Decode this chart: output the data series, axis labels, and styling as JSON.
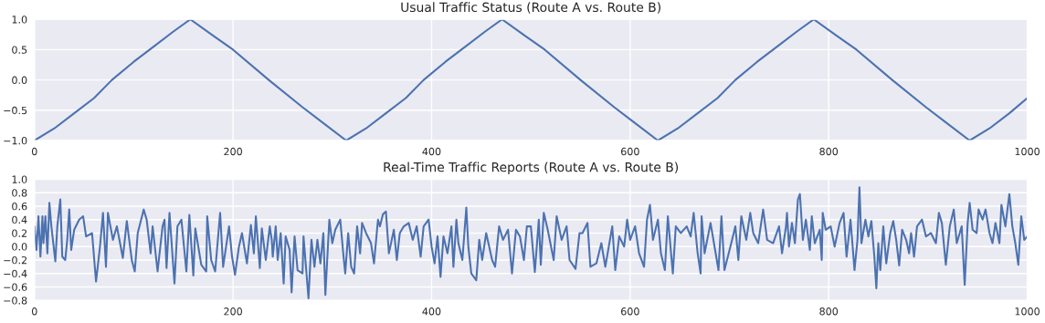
{
  "chart_data": [
    {
      "type": "line",
      "title": "Usual Traffic Status (Route A vs. Route B)",
      "grid": true,
      "xlim": [
        0,
        1000
      ],
      "xticks": [
        0,
        200,
        400,
        600,
        800,
        1000
      ],
      "ylim": [
        -1.0,
        1.0
      ],
      "yticks": [
        {
          "value": -1.0,
          "label": "−1.0"
        },
        {
          "value": -0.5,
          "label": "−0.5"
        },
        {
          "value": 0.0,
          "label": "0.0"
        },
        {
          "value": 0.5,
          "label": "0.5"
        },
        {
          "value": 1.0,
          "label": "1.0"
        }
      ],
      "series": [
        {
          "color": "#4c72b0",
          "x": [
            0,
            20,
            40,
            60,
            78,
            100,
            120,
            140,
            157,
            180,
            200,
            236,
            270,
            290,
            314,
            334,
            354,
            374,
            392,
            414,
            434,
            454,
            471,
            494,
            514,
            550,
            584,
            604,
            628,
            648,
            668,
            688,
            706,
            728,
            748,
            768,
            785,
            808,
            828,
            864,
            898,
            918,
            942,
            962,
            982,
            1000
          ],
          "values": [
            -1.0,
            -0.8,
            -0.55,
            -0.3,
            0.0,
            0.3,
            0.55,
            0.8,
            1.0,
            0.73,
            0.5,
            0.0,
            -0.45,
            -0.7,
            -1.0,
            -0.8,
            -0.55,
            -0.3,
            0.0,
            0.3,
            0.55,
            0.8,
            1.0,
            0.73,
            0.5,
            0.0,
            -0.45,
            -0.7,
            -1.0,
            -0.8,
            -0.55,
            -0.3,
            0.0,
            0.3,
            0.55,
            0.8,
            1.0,
            0.73,
            0.5,
            0.0,
            -0.45,
            -0.7,
            -1.0,
            -0.8,
            -0.55,
            -0.3
          ]
        }
      ]
    },
    {
      "type": "line",
      "title": "Real-Time Traffic Reports (Route A vs. Route B)",
      "grid": true,
      "xlim": [
        0,
        1000
      ],
      "xticks": [
        0,
        200,
        400,
        600,
        800,
        1000
      ],
      "ylim": [
        -0.8,
        1.0
      ],
      "yticks": [
        {
          "value": -0.8,
          "label": "−0.8"
        },
        {
          "value": -0.6,
          "label": "−0.6"
        },
        {
          "value": -0.4,
          "label": "−0.4"
        },
        {
          "value": -0.2,
          "label": "−0.2"
        },
        {
          "value": 0.0,
          "label": "0.0"
        },
        {
          "value": 0.2,
          "label": "0.2"
        },
        {
          "value": 0.4,
          "label": "0.4"
        },
        {
          "value": 0.6,
          "label": "0.6"
        },
        {
          "value": 0.8,
          "label": "0.8"
        },
        {
          "value": 1.0,
          "label": "1.0"
        }
      ],
      "series": [
        {
          "color": "#4c72b0",
          "x": [
            0,
            2,
            4,
            6,
            8,
            9,
            11,
            13,
            15,
            17,
            21,
            23,
            26,
            28,
            31,
            33,
            35,
            37,
            40,
            45,
            49,
            52,
            58,
            62,
            66,
            69,
            72,
            74,
            79,
            83,
            89,
            93,
            98,
            101,
            104,
            110,
            113,
            117,
            119,
            124,
            129,
            131,
            133,
            136,
            141,
            144,
            148,
            153,
            156,
            160,
            162,
            168,
            173,
            174,
            178,
            182,
            187,
            190,
            196,
            199,
            202,
            206,
            209,
            214,
            218,
            221,
            223,
            227,
            229,
            233,
            237,
            239,
            240,
            243,
            245,
            248,
            251,
            253,
            257,
            259,
            262,
            265,
            270,
            271,
            274,
            276,
            279,
            282,
            285,
            288,
            291,
            293,
            297,
            300,
            303,
            308,
            311,
            313,
            316,
            319,
            322,
            325,
            328,
            330,
            334,
            339,
            342,
            346,
            348,
            351,
            354,
            357,
            362,
            365,
            368,
            372,
            377,
            381,
            385,
            389,
            392,
            397,
            400,
            403,
            406,
            409,
            412,
            416,
            420,
            422,
            425,
            427,
            431,
            435,
            437,
            440,
            445,
            448,
            451,
            455,
            461,
            464,
            468,
            472,
            477,
            481,
            485,
            489,
            493,
            496,
            500,
            504,
            508,
            510,
            513,
            517,
            523,
            526,
            531,
            536,
            539,
            545,
            549,
            552,
            557,
            560,
            566,
            571,
            575,
            582,
            585,
            589,
            594,
            597,
            600,
            605,
            609,
            614,
            617,
            620,
            623,
            628,
            631,
            635,
            638,
            643,
            646,
            651,
            657,
            661,
            664,
            668,
            671,
            672,
            675,
            681,
            689,
            692,
            695,
            701,
            706,
            709,
            712,
            717,
            721,
            724,
            729,
            734,
            738,
            744,
            750,
            753,
            757,
            758,
            760,
            763,
            766,
            769,
            771,
            774,
            777,
            781,
            783,
            786,
            791,
            793,
            794,
            797,
            802,
            806,
            811,
            815,
            818,
            822,
            826,
            829,
            831,
            833,
            837,
            840,
            843,
            846,
            848,
            850,
            852,
            855,
            858,
            862,
            865,
            868,
            871,
            874,
            878,
            881,
            883,
            886,
            889,
            894,
            898,
            903,
            908,
            911,
            914,
            918,
            922,
            926,
            929,
            934,
            937,
            940,
            942,
            945,
            949,
            951,
            955,
            958,
            962,
            965,
            968,
            972,
            974,
            978,
            982,
            985,
            988,
            991,
            994,
            997,
            1000
          ],
          "values": [
            0.3,
            -0.05,
            0.45,
            -0.15,
            0.45,
            0.05,
            0.45,
            -0.1,
            0.65,
            0.3,
            -0.22,
            0.3,
            0.7,
            -0.15,
            -0.2,
            0.1,
            0.55,
            -0.05,
            0.25,
            0.4,
            0.45,
            0.15,
            0.2,
            -0.52,
            0.0,
            0.5,
            -0.3,
            0.5,
            0.1,
            0.3,
            -0.17,
            0.38,
            -0.2,
            -0.37,
            0.2,
            0.55,
            0.4,
            -0.1,
            0.3,
            -0.37,
            0.3,
            0.4,
            -0.32,
            0.5,
            -0.55,
            0.3,
            0.4,
            -0.37,
            0.47,
            -0.43,
            0.27,
            -0.27,
            -0.37,
            0.45,
            -0.2,
            -0.37,
            0.5,
            -0.3,
            0.3,
            -0.15,
            -0.42,
            0.0,
            0.2,
            -0.25,
            0.32,
            -0.1,
            0.45,
            -0.32,
            0.27,
            -0.2,
            0.3,
            0.1,
            -0.15,
            0.3,
            -0.2,
            0.2,
            -0.55,
            0.15,
            -0.05,
            -0.68,
            0.15,
            -0.35,
            -0.4,
            0.15,
            -0.4,
            -0.77,
            0.1,
            -0.3,
            0.1,
            -0.25,
            0.2,
            -0.72,
            0.4,
            0.05,
            0.25,
            0.4,
            -0.1,
            -0.4,
            0.2,
            -0.3,
            -0.4,
            0.3,
            -0.1,
            0.35,
            0.2,
            0.05,
            -0.25,
            0.4,
            0.3,
            0.48,
            0.52,
            -0.1,
            0.25,
            -0.2,
            0.2,
            0.3,
            0.35,
            0.1,
            0.3,
            -0.15,
            0.3,
            0.4,
            0.0,
            -0.25,
            0.15,
            -0.45,
            0.15,
            -0.1,
            0.3,
            -0.3,
            0.4,
            0.05,
            -0.2,
            0.58,
            0.0,
            -0.4,
            -0.5,
            0.1,
            -0.2,
            0.2,
            -0.2,
            -0.3,
            0.3,
            0.1,
            0.25,
            -0.4,
            0.25,
            0.15,
            -0.2,
            0.3,
            0.3,
            -0.38,
            0.4,
            -0.27,
            0.5,
            0.25,
            -0.2,
            0.45,
            0.1,
            0.3,
            -0.2,
            -0.33,
            0.2,
            0.2,
            0.35,
            -0.3,
            -0.25,
            0.05,
            -0.3,
            0.3,
            -0.35,
            0.15,
            0.0,
            0.4,
            0.1,
            0.3,
            -0.1,
            -0.3,
            0.4,
            0.62,
            0.1,
            0.4,
            -0.1,
            -0.35,
            0.45,
            -0.4,
            0.3,
            0.2,
            0.3,
            0.15,
            0.5,
            -0.1,
            -0.4,
            0.45,
            -0.1,
            0.35,
            -0.35,
            0.45,
            -0.35,
            0.0,
            0.3,
            -0.2,
            0.45,
            0.1,
            0.5,
            0.2,
            0.05,
            0.55,
            0.1,
            0.05,
            0.3,
            -0.1,
            0.3,
            0.5,
            0.0,
            0.35,
            0.05,
            0.7,
            0.78,
            0.1,
            0.4,
            -0.05,
            0.45,
            0.05,
            0.25,
            -0.2,
            0.5,
            0.25,
            0.3,
            0.0,
            0.35,
            0.5,
            -0.15,
            0.4,
            -0.35,
            0.1,
            0.88,
            0.05,
            0.4,
            0.15,
            0.38,
            -0.15,
            -0.62,
            0.05,
            -0.35,
            0.3,
            -0.25,
            0.2,
            0.38,
            0.1,
            -0.28,
            0.25,
            0.1,
            -0.1,
            0.2,
            -0.15,
            0.3,
            0.4,
            0.15,
            0.2,
            0.05,
            0.5,
            0.35,
            -0.27,
            0.3,
            0.55,
            0.05,
            0.3,
            -0.57,
            0.35,
            0.65,
            0.25,
            0.2,
            0.55,
            0.4,
            0.55,
            0.2,
            0.05,
            0.35,
            0.05,
            0.62,
            0.3,
            0.78,
            0.3,
            0.05,
            -0.27,
            0.45,
            0.1,
            0.15
          ]
        }
      ]
    }
  ]
}
